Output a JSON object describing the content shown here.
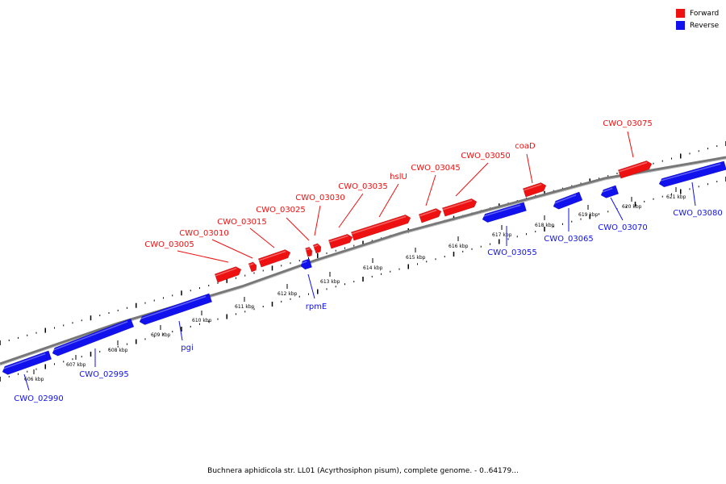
{
  "legend": {
    "forward": {
      "label": "Forward",
      "color": "#ee1111"
    },
    "reverse": {
      "label": "Reverse",
      "color": "#1111ee"
    }
  },
  "caption": "Buchnera aphidicola str. LL01 (Acyrthosiphon pisum), complete genome. - 0..64179...",
  "axis": {
    "unit": "kbp",
    "ticks": [
      606,
      607,
      608,
      609,
      610,
      611,
      612,
      613,
      614,
      615,
      616,
      617,
      618,
      619,
      620,
      621
    ]
  },
  "genes": [
    {
      "name": "CWO_02990",
      "strand": "reverse"
    },
    {
      "name": "CWO_02995",
      "strand": "reverse"
    },
    {
      "name": "pgi",
      "strand": "reverse"
    },
    {
      "name": "CWO_03005",
      "strand": "forward"
    },
    {
      "name": "CWO_03010",
      "strand": "forward"
    },
    {
      "name": "CWO_03015",
      "strand": "forward"
    },
    {
      "name": "rpmE",
      "strand": "reverse"
    },
    {
      "name": "CWO_03025",
      "strand": "forward"
    },
    {
      "name": "CWO_03030",
      "strand": "forward"
    },
    {
      "name": "CWO_03035",
      "strand": "forward"
    },
    {
      "name": "hslU",
      "strand": "forward"
    },
    {
      "name": "CWO_03045",
      "strand": "forward"
    },
    {
      "name": "CWO_03050",
      "strand": "forward"
    },
    {
      "name": "CWO_03055",
      "strand": "reverse"
    },
    {
      "name": "coaD",
      "strand": "forward"
    },
    {
      "name": "CWO_03065",
      "strand": "reverse"
    },
    {
      "name": "CWO_03070",
      "strand": "reverse"
    },
    {
      "name": "CWO_03075",
      "strand": "forward"
    },
    {
      "name": "CWO_03080",
      "strand": "reverse"
    }
  ]
}
